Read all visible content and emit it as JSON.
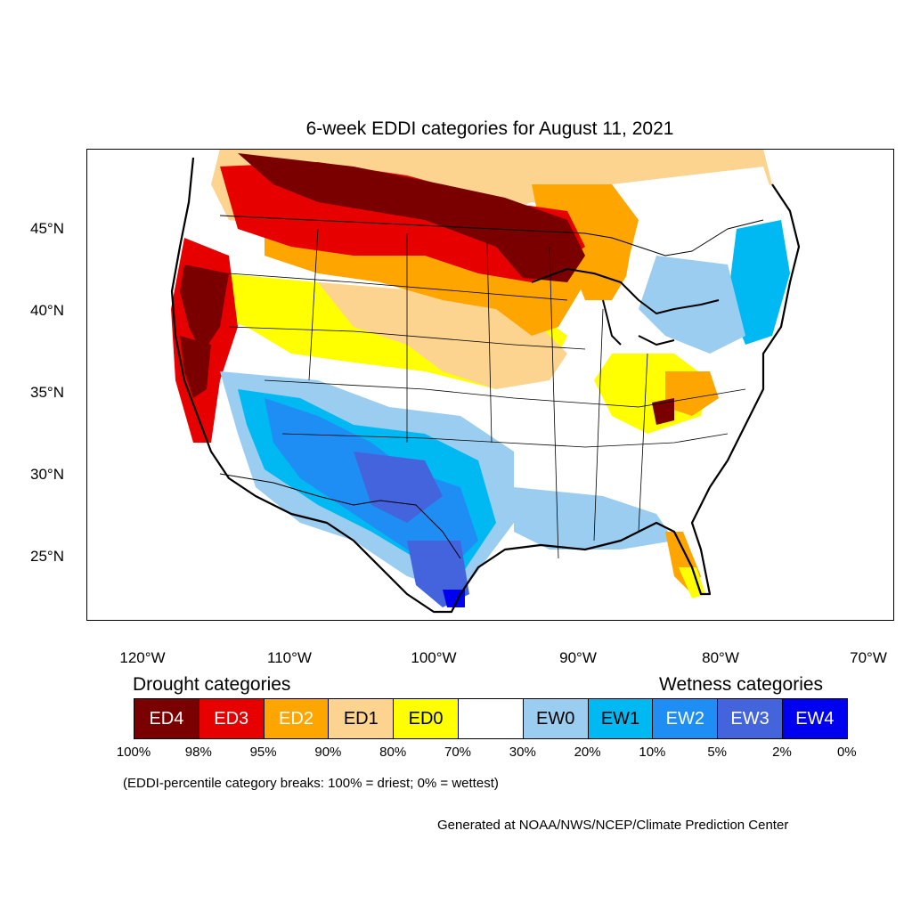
{
  "title": "6-week EDDI categories for August 11, 2021",
  "axes": {
    "lon_ticks": [
      "120°W",
      "110°W",
      "100°W",
      "90°W",
      "80°W",
      "70°W"
    ],
    "lat_ticks": [
      "45°N",
      "40°N",
      "35°N",
      "30°N",
      "25°N"
    ],
    "lon_range": [
      -124.0,
      -68.5
    ],
    "lat_range": [
      21.0,
      50.0
    ]
  },
  "legend": {
    "drought_heading": "Drought categories",
    "wetness_heading": "Wetness categories",
    "categories": [
      {
        "label": "ED4",
        "color": "#7a0000",
        "text_color": "#ffffff"
      },
      {
        "label": "ED3",
        "color": "#e60000",
        "text_color": "#ffffff"
      },
      {
        "label": "ED2",
        "color": "#ffa500",
        "text_color": "#ffffff"
      },
      {
        "label": "ED1",
        "color": "#fcd38f",
        "text_color": "#000000"
      },
      {
        "label": "ED0",
        "color": "#ffff00",
        "text_color": "#000000"
      },
      {
        "label": "",
        "color": "#ffffff",
        "text_color": "#000000"
      },
      {
        "label": "EW0",
        "color": "#9bcdf0",
        "text_color": "#000000"
      },
      {
        "label": "EW1",
        "color": "#00b9f2",
        "text_color": "#000000"
      },
      {
        "label": "EW2",
        "color": "#1e8ef5",
        "text_color": "#ffffff"
      },
      {
        "label": "EW3",
        "color": "#4364dc",
        "text_color": "#ffffff"
      },
      {
        "label": "EW4",
        "color": "#0000f0",
        "text_color": "#ffffff"
      }
    ],
    "breaks": [
      "100%",
      "98%",
      "95%",
      "90%",
      "80%",
      "70%",
      "30%",
      "20%",
      "10%",
      "5%",
      "2%",
      "0%"
    ]
  },
  "note": "(EDDI-percentile category breaks: 100% = driest; 0% = wettest)",
  "credit": "Generated at NOAA/NWS/NCEP/Climate Prediction Center"
}
